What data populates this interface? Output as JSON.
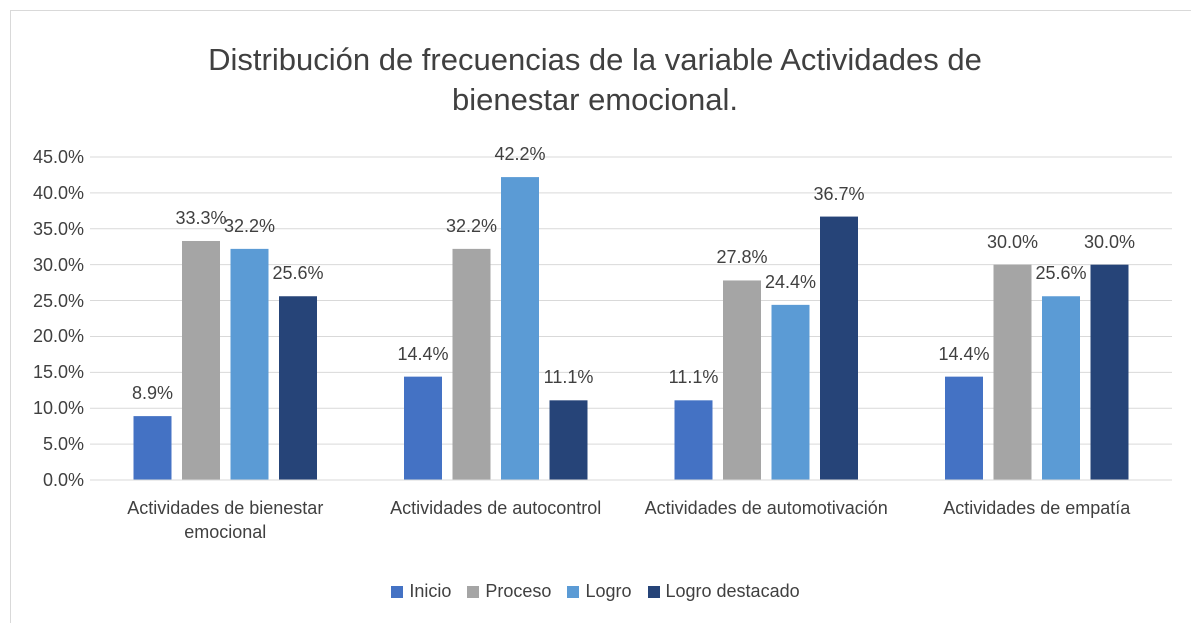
{
  "chart_data": {
    "type": "bar",
    "title": "Distribución de frecuencias de la variable Actividades de bienestar emocional.",
    "categories": [
      "Actividades de bienestar emocional",
      "Actividades de autocontrol",
      "Actividades de automotivación",
      "Actividades de empatía"
    ],
    "series": [
      {
        "name": "Inicio",
        "color": "#4472c4",
        "values": [
          8.9,
          14.4,
          11.1,
          14.4
        ],
        "value_labels": [
          "8.9%",
          "14.4%",
          "11.1%",
          "14.4%"
        ]
      },
      {
        "name": "Proceso",
        "color": "#a5a5a5",
        "values": [
          33.3,
          32.2,
          27.8,
          30.0
        ],
        "value_labels": [
          "33.3%",
          "32.2%",
          "27.8%",
          "30.0%"
        ]
      },
      {
        "name": "Logro",
        "color": "#5b9bd5",
        "values": [
          32.2,
          42.2,
          24.4,
          25.6
        ],
        "value_labels": [
          "32.2%",
          "42.2%",
          "24.4%",
          "25.6%"
        ]
      },
      {
        "name": "Logro destacado",
        "color": "#264478",
        "values": [
          25.6,
          11.1,
          36.7,
          30.0
        ],
        "value_labels": [
          "25.6%",
          "11.1%",
          "36.7%",
          "30.0%"
        ]
      }
    ],
    "ylim": [
      0,
      45
    ],
    "yticks": [
      {
        "value": 0,
        "label": "0.0%"
      },
      {
        "value": 5,
        "label": "5.0%"
      },
      {
        "value": 10,
        "label": "10.0%"
      },
      {
        "value": 15,
        "label": "15.0%"
      },
      {
        "value": 20,
        "label": "20.0%"
      },
      {
        "value": 25,
        "label": "25.0%"
      },
      {
        "value": 30,
        "label": "30.0%"
      },
      {
        "value": 35,
        "label": "35.0%"
      },
      {
        "value": 40,
        "label": "40.0%"
      },
      {
        "value": 45,
        "label": "45.0%"
      }
    ],
    "grid": true,
    "legend": "bottom"
  }
}
